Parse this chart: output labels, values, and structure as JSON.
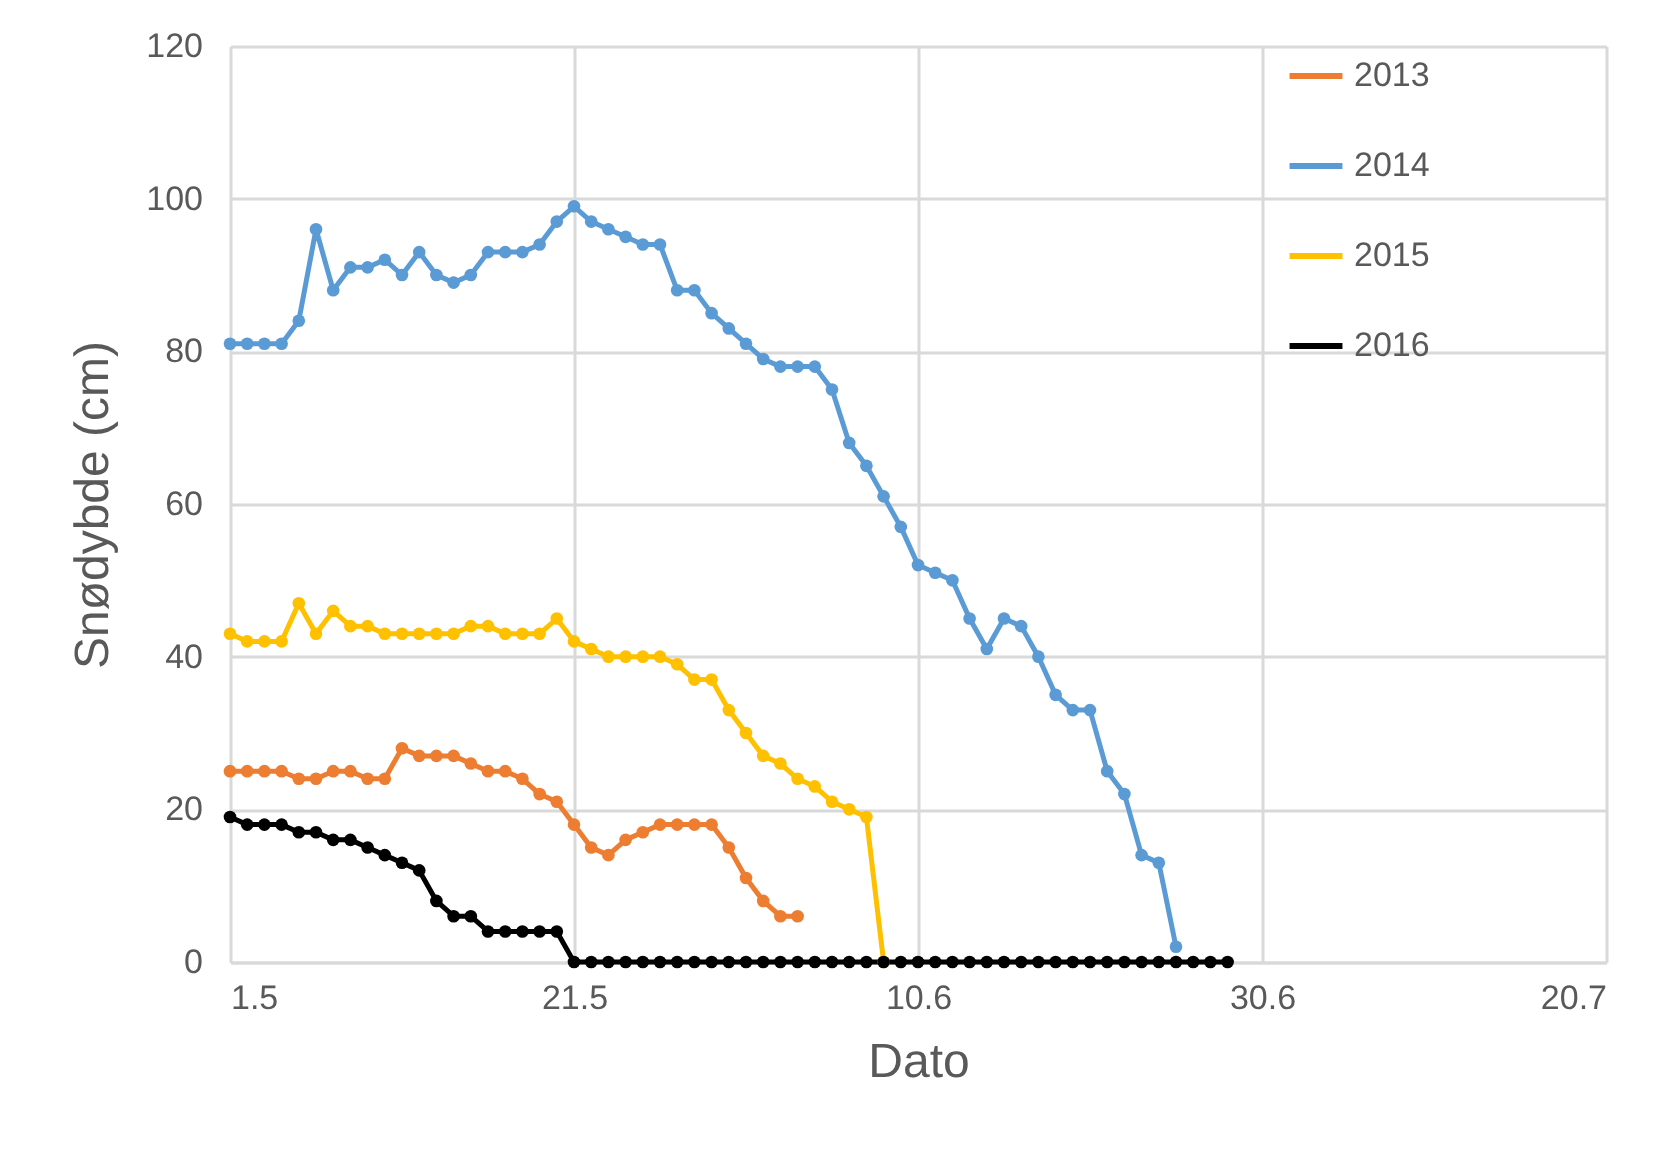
{
  "chart_data": {
    "type": "line",
    "xlabel": "Dato",
    "ylabel": "Snødybde (cm)",
    "x": [
      "--05-01",
      "--05-02",
      "--05-03",
      "--05-04",
      "--05-05",
      "--05-06",
      "--05-07",
      "--05-08",
      "--05-09",
      "--05-10",
      "--05-11",
      "--05-12",
      "--05-13",
      "--05-14",
      "--05-15",
      "--05-16",
      "--05-17",
      "--05-18",
      "--05-19",
      "--05-20",
      "--05-21",
      "--05-22",
      "--05-23",
      "--05-24",
      "--05-25",
      "--05-26",
      "--05-27",
      "--05-28",
      "--05-29",
      "--05-30",
      "--05-31",
      "--06-01",
      "--06-02",
      "--06-03",
      "--06-04",
      "--06-05",
      "--06-06",
      "--06-07",
      "--06-08",
      "--06-09",
      "--06-10",
      "--06-11",
      "--06-12",
      "--06-13",
      "--06-14",
      "--06-15",
      "--06-16",
      "--06-17",
      "--06-18",
      "--06-19",
      "--06-20",
      "--06-21",
      "--06-22",
      "--06-23",
      "--06-24",
      "--06-25",
      "--06-26",
      "--06-27",
      "--06-28"
    ],
    "series": [
      {
        "name": "2013",
        "color": "#ed7d31",
        "values": [
          25,
          25,
          25,
          25,
          24,
          24,
          25,
          25,
          24,
          24,
          28,
          27,
          27,
          27,
          26,
          25,
          25,
          24,
          22,
          21,
          18,
          15,
          14,
          16,
          17,
          18,
          18,
          18,
          18,
          15,
          11,
          8,
          6,
          6,
          null,
          null,
          null,
          null,
          null,
          null,
          null,
          null,
          null,
          null,
          null,
          null,
          null,
          null,
          null,
          null,
          null,
          null,
          null,
          null,
          null,
          null,
          null,
          null,
          null
        ]
      },
      {
        "name": "2014",
        "color": "#5b9bd5",
        "values": [
          81,
          81,
          81,
          81,
          84,
          96,
          88,
          91,
          91,
          92,
          90,
          93,
          90,
          89,
          90,
          93,
          93,
          93,
          94,
          97,
          99,
          97,
          96,
          95,
          94,
          94,
          88,
          88,
          85,
          83,
          81,
          79,
          78,
          78,
          78,
          75,
          68,
          65,
          61,
          57,
          52,
          51,
          50,
          45,
          41,
          45,
          44,
          40,
          35,
          33,
          33,
          25,
          22,
          14,
          13,
          2,
          null,
          null,
          null
        ]
      },
      {
        "name": "2015",
        "color": "#ffc000",
        "values": [
          43,
          42,
          42,
          42,
          47,
          43,
          46,
          44,
          44,
          43,
          43,
          43,
          43,
          43,
          44,
          44,
          43,
          43,
          43,
          45,
          42,
          41,
          40,
          40,
          40,
          40,
          39,
          37,
          37,
          33,
          30,
          27,
          26,
          24,
          23,
          21,
          20,
          19,
          0,
          null,
          null,
          null,
          null,
          null,
          null,
          null,
          null,
          null,
          null,
          null,
          null,
          null,
          null,
          null,
          null,
          null,
          null,
          null,
          null
        ]
      },
      {
        "name": "2016",
        "color": "#000000",
        "values": [
          19,
          18,
          18,
          18,
          17,
          17,
          16,
          16,
          15,
          14,
          13,
          12,
          8,
          6,
          6,
          4,
          4,
          4,
          4,
          4,
          0,
          0,
          0,
          0,
          0,
          0,
          0,
          0,
          0,
          0,
          0,
          0,
          0,
          0,
          0,
          0,
          0,
          0,
          0,
          0,
          0,
          0,
          0,
          0,
          0,
          0,
          0,
          0,
          0,
          0,
          0,
          0,
          0,
          0,
          0,
          0,
          0,
          0,
          0
        ]
      }
    ],
    "xlim": [
      "--05-01",
      "--07-20"
    ],
    "xticks": [
      {
        "value": "--05-01",
        "label": "1.5"
      },
      {
        "value": "--05-21",
        "label": "21.5"
      },
      {
        "value": "--06-10",
        "label": "10.6"
      },
      {
        "value": "--06-30",
        "label": "30.6"
      },
      {
        "value": "--07-20",
        "label": "20.7"
      }
    ],
    "ylim": [
      0,
      120
    ],
    "yticks": [
      0,
      20,
      40,
      60,
      80,
      100,
      120
    ],
    "grid": true,
    "legend": "right",
    "marker": "circle",
    "line_style": "solid"
  }
}
